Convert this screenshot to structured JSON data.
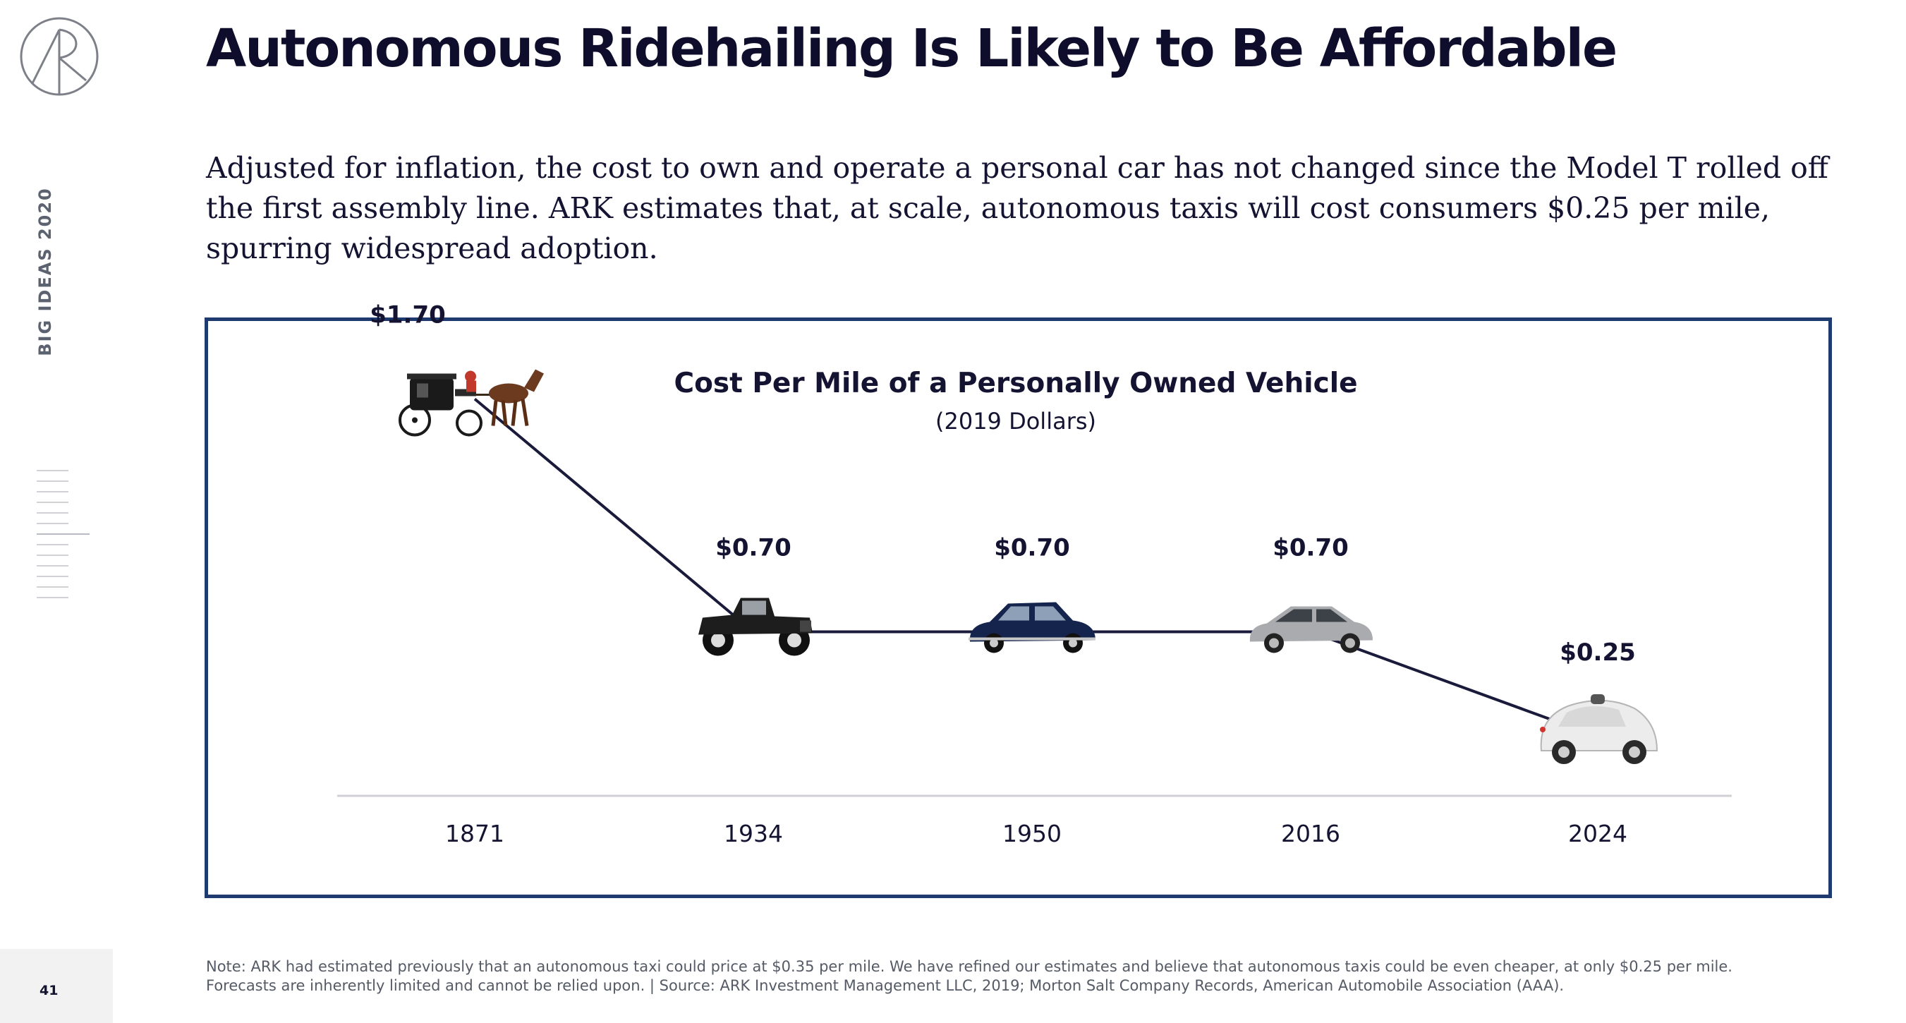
{
  "side_label": "BIG IDEAS 2020",
  "page_number": "41",
  "title": "Autonomous Ridehailing Is Likely to Be Affordable",
  "subtitle": "Adjusted for inflation, the cost to own and operate a personal car has not changed since the Model T rolled off the first assembly line. ARK estimates that, at scale, autonomous taxis will cost consumers $0.25 per mile, spurring widespread adoption.",
  "footnote": {
    "line1": "Note: ARK had estimated previously that an autonomous taxi could price at $0.35 per mile. We have refined our estimates and believe that autonomous taxis could be even cheaper, at only $0.25 per mile.",
    "line2": "Forecasts are inherently limited and cannot be relied upon.  |  Source: ARK Investment Management LLC, 2019; Morton Salt Company Records, American Automobile Association (AAA)."
  },
  "colors": {
    "frame": "#1f3a6e",
    "line": "#1a1a3a",
    "text": "#141432"
  },
  "chart_data": {
    "type": "line",
    "title": "Cost Per Mile of a Personally Owned Vehicle",
    "subtitle": "(2019 Dollars)",
    "categories": [
      "1871",
      "1934",
      "1950",
      "2016",
      "2024"
    ],
    "values": [
      1.7,
      0.7,
      0.7,
      0.7,
      0.25
    ],
    "labels": [
      "$1.70",
      "$0.70",
      "$0.70",
      "$0.70",
      "$0.25"
    ],
    "markers": [
      "horse-carriage-icon",
      "model-t-car-icon",
      "1950s-sedan-icon",
      "modern-sedan-icon",
      "autonomous-car-icon"
    ],
    "ylabel": "",
    "xlabel": "",
    "grid": false,
    "legend": "none"
  }
}
